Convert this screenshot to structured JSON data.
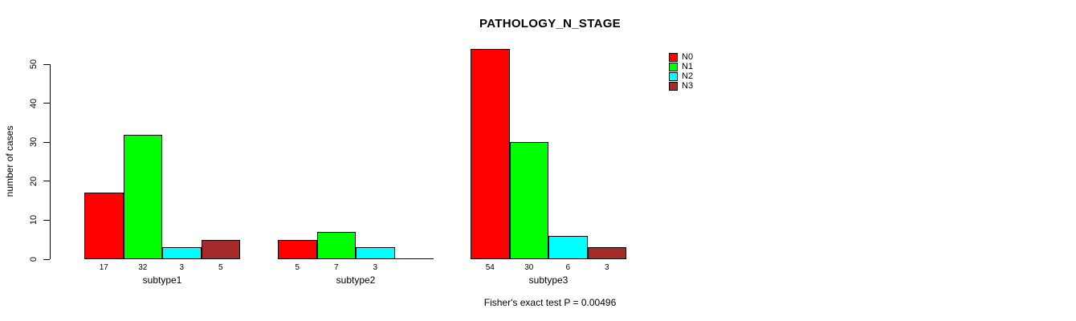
{
  "chart_data": {
    "type": "bar",
    "title": "PATHOLOGY_N_STAGE",
    "ylabel": "number of cases",
    "xlabel": "",
    "annotation": "Fisher's exact test P = 0.00496",
    "categories": [
      "subtype1",
      "subtype2",
      "subtype3"
    ],
    "series": [
      {
        "name": "N0",
        "color": "#ff0000",
        "values": [
          17,
          5,
          54
        ]
      },
      {
        "name": "N1",
        "color": "#00ff00",
        "values": [
          32,
          7,
          30
        ]
      },
      {
        "name": "N2",
        "color": "#00ffff",
        "values": [
          3,
          3,
          6
        ]
      },
      {
        "name": "N3",
        "color": "#a52a2a",
        "values": [
          5,
          0,
          3
        ]
      }
    ],
    "ylim": [
      0,
      50
    ],
    "yticks": [
      0,
      10,
      20,
      30,
      40,
      50
    ],
    "bar_value_labels_shown": true,
    "zero_bars_drawn_as_flat_line": true,
    "legend_position": "top-right",
    "legend_labels": [
      "N0",
      "N1",
      "N2",
      "N3"
    ],
    "grid": false,
    "bar_border_color": "#000000",
    "axis_color": "#000000",
    "background": "#ffffff"
  }
}
